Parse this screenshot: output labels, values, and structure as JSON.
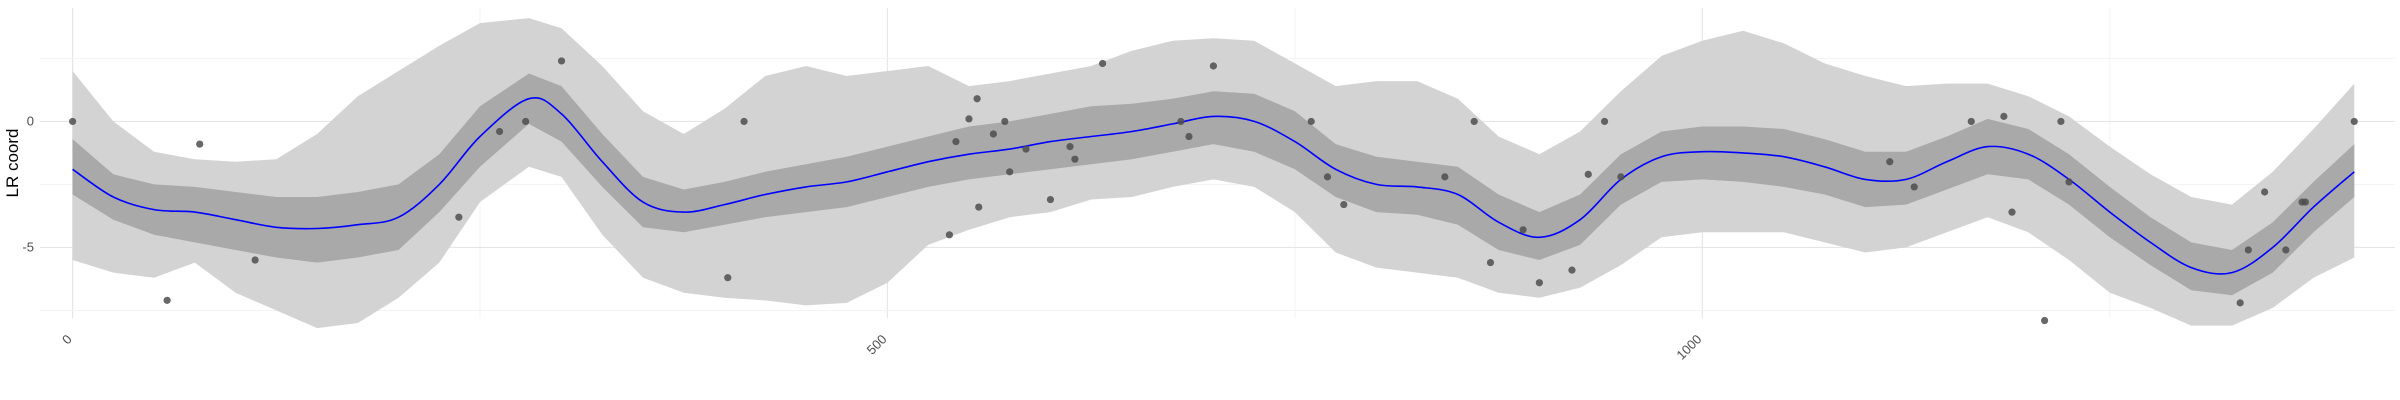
{
  "chart_data": {
    "type": "line",
    "title": "",
    "xlabel": "",
    "ylabel": "LR coord",
    "xlim": [
      -20,
      1425
    ],
    "ylim": [
      -7.8,
      4.5
    ],
    "x_ticks": [
      0,
      500,
      1000
    ],
    "y_ticks": [
      0,
      -5
    ],
    "y_tick_labels": [
      "0",
      "-5"
    ],
    "grid": true,
    "colors": {
      "line": "#0000ff",
      "inner_band": "#a9a9a9",
      "outer_band": "#d3d3d3",
      "points": "#4d4d4d",
      "grid_major": "#e6e6e6",
      "grid_minor": "#f3f3f3"
    },
    "fitted_line": {
      "x": [
        0,
        25,
        50,
        75,
        100,
        125,
        150,
        175,
        200,
        225,
        250,
        280,
        300,
        325,
        350,
        375,
        400,
        425,
        450,
        475,
        500,
        525,
        550,
        575,
        600,
        625,
        650,
        675,
        700,
        725,
        750,
        775,
        800,
        825,
        850,
        875,
        900,
        925,
        950,
        975,
        1000,
        1025,
        1050,
        1075,
        1100,
        1125,
        1150,
        1175,
        1200,
        1225,
        1250,
        1275,
        1300,
        1325,
        1350,
        1375,
        1400
      ],
      "y": [
        -1.9,
        -3.0,
        -3.5,
        -3.6,
        -3.9,
        -4.2,
        -4.25,
        -4.1,
        -3.8,
        -2.5,
        -0.6,
        0.9,
        0.3,
        -1.6,
        -3.2,
        -3.6,
        -3.3,
        -2.9,
        -2.6,
        -2.4,
        -2.0,
        -1.6,
        -1.3,
        -1.1,
        -0.8,
        -0.6,
        -0.4,
        -0.1,
        0.2,
        0.0,
        -0.8,
        -1.9,
        -2.5,
        -2.6,
        -2.9,
        -4.0,
        -4.6,
        -3.9,
        -2.3,
        -1.4,
        -1.2,
        -1.25,
        -1.4,
        -1.8,
        -2.3,
        -2.3,
        -1.6,
        -1.0,
        -1.3,
        -2.3,
        -3.6,
        -4.8,
        -5.8,
        -6.0,
        -5.0,
        -3.4,
        -2.0
      ]
    },
    "inner_band": {
      "lower": [
        -2.9,
        -3.9,
        -4.5,
        -4.8,
        -5.1,
        -5.4,
        -5.6,
        -5.4,
        -5.1,
        -3.6,
        -1.8,
        -0.1,
        -0.8,
        -2.6,
        -4.2,
        -4.4,
        -4.1,
        -3.8,
        -3.6,
        -3.4,
        -3.0,
        -2.6,
        -2.3,
        -2.1,
        -1.9,
        -1.7,
        -1.5,
        -1.2,
        -0.9,
        -1.2,
        -1.9,
        -3.0,
        -3.6,
        -3.7,
        -4.1,
        -5.1,
        -5.5,
        -4.9,
        -3.3,
        -2.4,
        -2.3,
        -2.4,
        -2.6,
        -2.9,
        -3.4,
        -3.3,
        -2.7,
        -2.1,
        -2.3,
        -3.3,
        -4.6,
        -5.7,
        -6.7,
        -6.9,
        -6.0,
        -4.4,
        -3.0
      ],
      "upper": [
        -0.7,
        -2.1,
        -2.5,
        -2.6,
        -2.8,
        -3.0,
        -3.0,
        -2.8,
        -2.5,
        -1.3,
        0.6,
        1.9,
        1.4,
        -0.5,
        -2.2,
        -2.7,
        -2.4,
        -2.0,
        -1.7,
        -1.4,
        -1.0,
        -0.6,
        -0.2,
        0.0,
        0.3,
        0.6,
        0.7,
        0.9,
        1.2,
        1.1,
        0.4,
        -0.9,
        -1.4,
        -1.6,
        -1.8,
        -2.9,
        -3.6,
        -2.9,
        -1.3,
        -0.4,
        -0.2,
        -0.2,
        -0.3,
        -0.7,
        -1.2,
        -1.2,
        -0.6,
        0.1,
        -0.3,
        -1.3,
        -2.6,
        -3.8,
        -4.8,
        -5.1,
        -4.0,
        -2.4,
        -0.9
      ]
    },
    "outer_band": {
      "lower": [
        -5.5,
        -6.0,
        -6.2,
        -5.6,
        -6.8,
        -7.5,
        -8.2,
        -8.0,
        -7.0,
        -5.6,
        -3.2,
        -1.8,
        -2.2,
        -4.5,
        -6.2,
        -6.8,
        -7.0,
        -7.1,
        -7.3,
        -7.2,
        -6.4,
        -4.9,
        -4.3,
        -3.8,
        -3.6,
        -3.1,
        -3.0,
        -2.6,
        -2.3,
        -2.6,
        -3.6,
        -5.2,
        -5.8,
        -6.0,
        -6.2,
        -6.8,
        -7.0,
        -6.6,
        -5.7,
        -4.6,
        -4.4,
        -4.4,
        -4.4,
        -4.8,
        -5.2,
        -5.0,
        -4.4,
        -3.8,
        -4.4,
        -5.5,
        -6.8,
        -7.4,
        -8.1,
        -8.1,
        -7.4,
        -6.2,
        -5.4
      ],
      "upper": [
        2.0,
        0.0,
        -1.2,
        -1.5,
        -1.6,
        -1.5,
        -0.5,
        1.0,
        2.0,
        3.0,
        3.9,
        4.1,
        3.7,
        2.2,
        0.4,
        -0.5,
        0.5,
        1.8,
        2.2,
        1.8,
        2.0,
        2.2,
        1.4,
        1.6,
        1.9,
        2.2,
        2.8,
        3.2,
        3.3,
        3.2,
        2.3,
        1.4,
        1.6,
        1.6,
        0.9,
        -0.6,
        -1.3,
        -0.4,
        1.2,
        2.6,
        3.2,
        3.6,
        3.1,
        2.3,
        1.8,
        1.4,
        1.5,
        1.5,
        1.0,
        0.2,
        -1.0,
        -2.1,
        -3.0,
        -3.3,
        -2.0,
        -0.3,
        1.5
      ]
    },
    "points": {
      "x": [
        0,
        58,
        78,
        112,
        237,
        262,
        278,
        300,
        402,
        412,
        538,
        542,
        550,
        555,
        556,
        565,
        572,
        575,
        585,
        600,
        612,
        615,
        632,
        680,
        685,
        700,
        760,
        770,
        780,
        842,
        860,
        870,
        890,
        900,
        920,
        930,
        940,
        950,
        1115,
        1130,
        1165,
        1185,
        1190,
        1210,
        1220,
        1225,
        1330,
        1335,
        1345,
        1358,
        1370,
        1368,
        1400
      ],
      "y": [
        0,
        -7.1,
        -0.9,
        -5.5,
        -3.8,
        -0.4,
        0,
        2.4,
        -6.2,
        0,
        -4.5,
        -0.8,
        0.1,
        0.9,
        -3.4,
        -0.5,
        0,
        -2.0,
        -1.1,
        -3.1,
        -1.0,
        -1.5,
        2.3,
        0,
        -0.6,
        2.2,
        0,
        -2.2,
        -3.3,
        -2.2,
        0,
        -5.6,
        -4.3,
        -6.4,
        -5.9,
        -2.1,
        0,
        -2.2,
        -1.6,
        -2.6,
        0,
        0.2,
        -3.6,
        -7.9,
        0,
        -2.4,
        -7.2,
        -5.1,
        -2.8,
        -5.1,
        -3.2,
        -3.2,
        0
      ]
    }
  }
}
